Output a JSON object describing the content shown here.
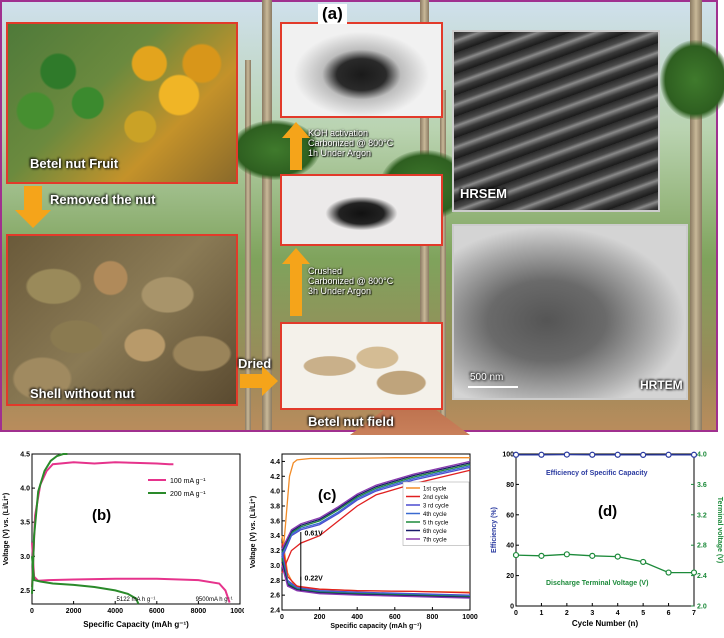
{
  "panel_a": {
    "label": "(a)",
    "texts": {
      "fruit": "Betel nut Fruit",
      "removed": "Removed the nut",
      "shell": "Shell without nut",
      "dried": "Dried",
      "field": "Betel nut field",
      "koh_line1": "KOH activation",
      "koh_line2": "Carbonized @ 800°C",
      "koh_line3": "1h Under Argon",
      "crush_line1": "Crushed",
      "crush_line2": "Carbonized @ 800°C",
      "crush_line3": "3h Under Argon",
      "hrsem": "HRSEM",
      "hrtem": "HRTEM",
      "scale": "500 nm"
    }
  },
  "chart_data": [
    {
      "id": "b",
      "type": "line",
      "panel_label": "(b)",
      "xlabel": "Specific Capacity (mAh g⁻¹)",
      "ylabel": "Voltage (V) vs. (Li/Li⁺)",
      "xlim": [
        0,
        10000
      ],
      "ylim": [
        2.3,
        4.5
      ],
      "xticks": [
        0,
        2000,
        4000,
        6000,
        8000,
        10000
      ],
      "yticks": [
        2.5,
        3.0,
        3.5,
        4.0,
        4.5
      ],
      "legend": [
        "100 mA g⁻¹",
        "200 mA g⁻¹"
      ],
      "annotations": [
        "5122 mA h g⁻¹",
        "9500mA h g⁻¹"
      ],
      "series": [
        {
          "name": "100 mA g⁻¹",
          "color": "#e6338c",
          "role": "charge",
          "x": [
            0,
            150,
            400,
            700,
            1000,
            2000,
            3000,
            4000,
            5000,
            6000,
            6600,
            6800
          ],
          "y": [
            2.55,
            3.6,
            4.05,
            4.25,
            4.35,
            4.38,
            4.36,
            4.38,
            4.37,
            4.36,
            4.35,
            4.35
          ]
        },
        {
          "name": "100 mA g⁻¹",
          "color": "#e6338c",
          "role": "discharge",
          "x": [
            0,
            100,
            300,
            800,
            2000,
            4000,
            6000,
            8000,
            9000,
            9300,
            9500
          ],
          "y": [
            3.2,
            2.7,
            2.64,
            2.65,
            2.66,
            2.67,
            2.67,
            2.65,
            2.6,
            2.5,
            2.32
          ]
        },
        {
          "name": "200 mA g⁻¹",
          "color": "#2a8a2a",
          "role": "charge",
          "x": [
            0,
            100,
            300,
            600,
            900,
            1200,
            1500,
            1700
          ],
          "y": [
            2.45,
            3.3,
            3.95,
            4.25,
            4.4,
            4.47,
            4.5,
            4.5
          ]
        },
        {
          "name": "200 mA g⁻¹",
          "color": "#2a8a2a",
          "role": "discharge",
          "x": [
            0,
            100,
            400,
            1000,
            2000,
            3000,
            4000,
            4600,
            5000,
            5122
          ],
          "y": [
            3.0,
            2.65,
            2.63,
            2.6,
            2.58,
            2.55,
            2.5,
            2.45,
            2.38,
            2.3
          ]
        }
      ]
    },
    {
      "id": "c",
      "type": "line",
      "panel_label": "(c)",
      "xlabel": "Specific capacity (mAh g⁻¹)",
      "ylabel": "Voltage (V) vs. (Li/Li⁺)",
      "xlim": [
        0,
        1000
      ],
      "ylim": [
        2.4,
        4.5
      ],
      "xticks": [
        0,
        200,
        400,
        600,
        800,
        1000
      ],
      "yticks": [
        2.4,
        2.6,
        2.8,
        3.0,
        3.2,
        3.4,
        3.6,
        3.8,
        4.0,
        4.2,
        4.4
      ],
      "annotations": [
        "0.61V",
        "0.22V"
      ],
      "series": [
        {
          "name": "1st cycle",
          "color": "#f28c28",
          "charge": {
            "x": [
              0,
              20,
              40,
              60,
              80,
              150,
              300,
              600,
              1000
            ],
            "y": [
              3.0,
              3.6,
              4.2,
              4.38,
              4.42,
              4.44,
              4.44,
              4.45,
              4.45
            ]
          },
          "discharge": {
            "x": [
              0,
              30,
              60,
              100,
              200,
              400,
              700,
              1000
            ],
            "y": [
              3.4,
              2.9,
              2.75,
              2.7,
              2.68,
              2.66,
              2.65,
              2.64
            ]
          }
        },
        {
          "name": "2nd cycle",
          "color": "#e02020",
          "charge": {
            "x": [
              0,
              50,
              100,
              200,
              300,
              400,
              500,
              700,
              1000
            ],
            "y": [
              2.9,
              3.2,
              3.3,
              3.4,
              3.6,
              3.8,
              3.95,
              4.1,
              4.28
            ]
          },
          "discharge": {
            "x": [
              0,
              30,
              80,
              200,
              400,
              700,
              1000
            ],
            "y": [
              3.3,
              2.85,
              2.72,
              2.68,
              2.66,
              2.65,
              2.63
            ]
          }
        },
        {
          "name": "3 rd cycle",
          "color": "#4b4bd0",
          "charge": {
            "x": [
              0,
              50,
              100,
              200,
              300,
              400,
              500,
              700,
              1000
            ],
            "y": [
              3.1,
              3.4,
              3.48,
              3.55,
              3.7,
              3.88,
              4.0,
              4.15,
              4.32
            ]
          },
          "discharge": {
            "x": [
              0,
              30,
              80,
              200,
              400,
              700,
              1000
            ],
            "y": [
              3.2,
              2.8,
              2.7,
              2.66,
              2.64,
              2.62,
              2.6
            ]
          }
        },
        {
          "name": "4th cycle",
          "color": "#3a6ad0",
          "charge": {
            "x": [
              0,
              50,
              100,
              200,
              300,
              400,
              500,
              700,
              1000
            ],
            "y": [
              3.15,
              3.42,
              3.5,
              3.57,
              3.72,
              3.9,
              4.02,
              4.17,
              4.34
            ]
          },
          "discharge": {
            "x": [
              0,
              30,
              80,
              200,
              400,
              700,
              1000
            ],
            "y": [
              3.15,
              2.78,
              2.69,
              2.65,
              2.63,
              2.61,
              2.59
            ]
          }
        },
        {
          "name": "5 th cycle",
          "color": "#1c8a3a",
          "charge": {
            "x": [
              0,
              50,
              100,
              200,
              300,
              400,
              500,
              700,
              1000
            ],
            "y": [
              3.18,
              3.44,
              3.52,
              3.6,
              3.75,
              3.92,
              4.04,
              4.19,
              4.36
            ]
          },
          "discharge": {
            "x": [
              0,
              30,
              80,
              200,
              400,
              700,
              1000
            ],
            "y": [
              3.1,
              2.76,
              2.68,
              2.64,
              2.62,
              2.6,
              2.58
            ]
          }
        },
        {
          "name": "6th cycle",
          "color": "#1a1a6a",
          "charge": {
            "x": [
              0,
              50,
              100,
              200,
              300,
              400,
              500,
              700,
              1000
            ],
            "y": [
              3.2,
              3.46,
              3.54,
              3.62,
              3.77,
              3.94,
              4.06,
              4.21,
              4.38
            ]
          },
          "discharge": {
            "x": [
              0,
              30,
              80,
              200,
              400,
              700,
              1000
            ],
            "y": [
              3.05,
              2.74,
              2.67,
              2.63,
              2.61,
              2.59,
              2.57
            ]
          }
        },
        {
          "name": "7th cycle",
          "color": "#8a3ab0",
          "charge": {
            "x": [
              0,
              50,
              100,
              200,
              300,
              400,
              500,
              700,
              1000
            ],
            "y": [
              3.22,
              3.48,
              3.56,
              3.64,
              3.79,
              3.96,
              4.08,
              4.23,
              4.4
            ]
          },
          "discharge": {
            "x": [
              0,
              30,
              80,
              200,
              400,
              700,
              1000
            ],
            "y": [
              3.0,
              2.72,
              2.66,
              2.62,
              2.6,
              2.58,
              2.56
            ]
          }
        }
      ]
    },
    {
      "id": "d",
      "type": "line",
      "panel_label": "(d)",
      "xlabel": "Cycle Number (n)",
      "ylabel": "Efficiency (%)",
      "y2label": "Terminal voltage (V)",
      "xlim": [
        0,
        7
      ],
      "ylim": [
        0,
        100
      ],
      "y2lim": [
        2.0,
        4.0
      ],
      "xticks": [
        0,
        1,
        2,
        3,
        4,
        5,
        6,
        7
      ],
      "yticks": [
        0,
        20,
        40,
        60,
        80,
        100
      ],
      "y2ticks": [
        2.0,
        2.4,
        2.8,
        3.2,
        3.6,
        4.0
      ],
      "series": [
        {
          "name": "Efficiency of Specific Capacity",
          "axis": "left",
          "color": "#2a3aa0",
          "x": [
            0,
            1,
            2,
            3,
            4,
            5,
            6,
            7
          ],
          "y": [
            99.5,
            99.5,
            99.6,
            99.5,
            99.5,
            99.4,
            99.5,
            99.5
          ]
        },
        {
          "name": "Discharge Terminal Voltage (V)",
          "axis": "right",
          "color": "#1c8a3a",
          "x": [
            0,
            1,
            2,
            3,
            4,
            5,
            6,
            7
          ],
          "y": [
            2.67,
            2.66,
            2.68,
            2.66,
            2.65,
            2.58,
            2.44,
            2.44
          ]
        }
      ]
    }
  ]
}
